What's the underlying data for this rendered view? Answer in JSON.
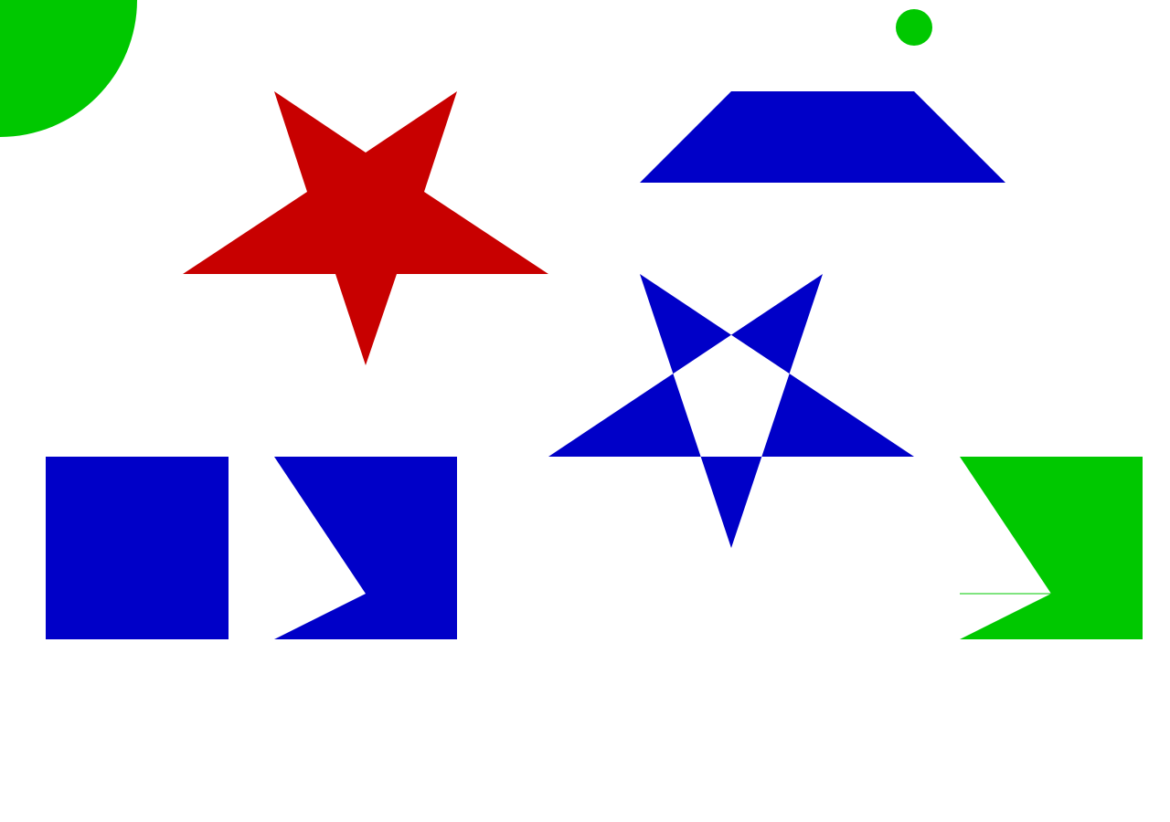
{
  "colors": {
    "background": "#ffffff",
    "red": "#c80000",
    "green": "#00c800",
    "blue": "#0000c8"
  },
  "shapes": [
    {
      "id": "quarter-circle",
      "kind": "quarter circle",
      "color": "green"
    },
    {
      "id": "small-circle",
      "kind": "circle",
      "color": "green"
    },
    {
      "id": "red-star",
      "kind": "five-pointed star",
      "color": "red"
    },
    {
      "id": "trapezoid",
      "kind": "trapezoid",
      "color": "blue"
    },
    {
      "id": "pentagram",
      "kind": "pentagram with hollow center",
      "color": "blue"
    },
    {
      "id": "square",
      "kind": "square",
      "color": "blue"
    },
    {
      "id": "notched-rectangle",
      "kind": "rectangle with triangular notch",
      "color": "blue"
    },
    {
      "id": "green-notched-rectangle",
      "kind": "rectangle with triangular notch",
      "color": "green"
    }
  ]
}
